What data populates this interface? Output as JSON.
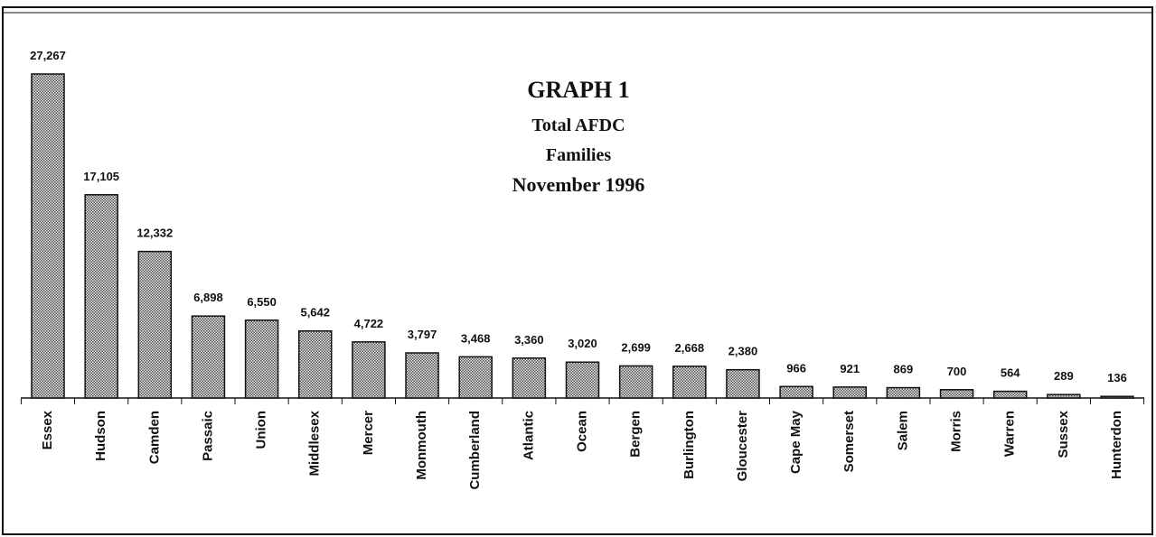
{
  "chart_data": {
    "type": "bar",
    "title": [
      "GRAPH 1",
      "Total AFDC",
      "Families",
      "November 1996"
    ],
    "categories": [
      "Essex",
      "Hudson",
      "Camden",
      "Passaic",
      "Union",
      "Middlesex",
      "Mercer",
      "Monmouth",
      "Cumberland",
      "Atlantic",
      "Ocean",
      "Bergen",
      "Burlington",
      "Gloucester",
      "Cape May",
      "Somerset",
      "Salem",
      "Morris",
      "Warren",
      "Sussex",
      "Hunterdon"
    ],
    "values": [
      27267,
      17105,
      12332,
      6898,
      6550,
      5642,
      4722,
      3797,
      3468,
      3360,
      3020,
      2699,
      2668,
      2380,
      966,
      921,
      869,
      700,
      564,
      289,
      136
    ],
    "value_labels": [
      "27,267",
      "17,105",
      "12,332",
      "6,898",
      "6,550",
      "5,642",
      "4,722",
      "3,797",
      "3,468",
      "3,360",
      "3,020",
      "2,699",
      "2,668",
      "2,380",
      "966",
      "921",
      "869",
      "700",
      "564",
      "289",
      "136"
    ],
    "color": "#9a9a9a"
  }
}
